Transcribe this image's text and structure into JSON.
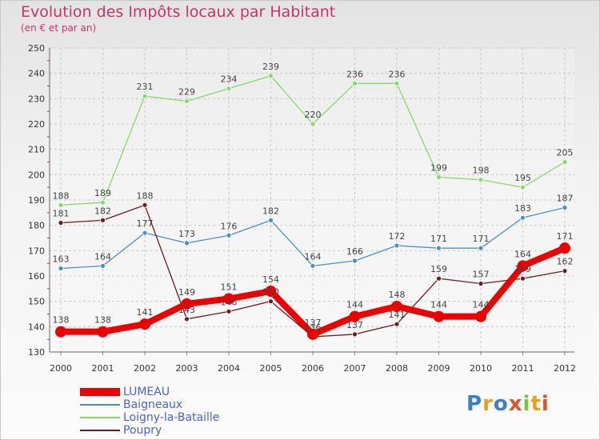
{
  "title": "Evolution des Impôts locaux par Habitant",
  "subtitle": "(en € et par an)",
  "logo_text": "Proxiti",
  "chart_data": {
    "type": "line",
    "title": "Evolution des Impôts locaux par Habitant",
    "subtitle": "(en € et par an)",
    "xlabel": "",
    "ylabel": "",
    "ylim": [
      130,
      250
    ],
    "yticks": [
      "130",
      "140",
      "150",
      "160",
      "170",
      "180",
      "190",
      "200",
      "210",
      "220",
      "230",
      "240",
      "250"
    ],
    "x": [
      "2000",
      "2001",
      "2002",
      "2003",
      "2004",
      "2005",
      "2006",
      "2007",
      "2008",
      "2009",
      "2010",
      "2011",
      "2012"
    ],
    "legend_position": "bottom-left",
    "series": [
      {
        "name": "LUMEAU",
        "color": "#ee0000",
        "values": [
          138,
          138,
          141,
          149,
          151,
          154,
          137,
          144,
          148,
          144,
          144,
          164,
          171
        ],
        "labels": [
          "138",
          "138",
          "141",
          "149",
          "151",
          "154",
          "137",
          "144",
          "148",
          "144",
          "144",
          "164",
          "171"
        ]
      },
      {
        "name": "Baigneaux",
        "color": "#4a8fc4",
        "values": [
          163,
          164,
          177,
          173,
          176,
          182,
          164,
          166,
          172,
          171,
          171,
          183,
          187
        ],
        "labels": [
          "163",
          "164",
          "177",
          "173",
          "176",
          "182",
          "164",
          "166",
          "172",
          "171",
          "171",
          "183",
          "187"
        ]
      },
      {
        "name": "Loigny-la-Bataille",
        "color": "#88d86a",
        "values": [
          188,
          189,
          231,
          229,
          234,
          239,
          220,
          236,
          236,
          199,
          198,
          195,
          205
        ],
        "labels": [
          "188",
          "189",
          "231",
          "229",
          "234",
          "239",
          "220",
          "236",
          "236",
          "199",
          "198",
          "195",
          "205"
        ]
      },
      {
        "name": "Poupry",
        "color": "#6e1a1e",
        "values": [
          181,
          182,
          188,
          143,
          146,
          150,
          136,
          137,
          141,
          159,
          157,
          159,
          162
        ],
        "labels": [
          "181",
          "182",
          "188",
          "143",
          "146",
          "150",
          "136",
          "137",
          "141",
          "159",
          "157",
          "159",
          "162"
        ]
      }
    ]
  }
}
